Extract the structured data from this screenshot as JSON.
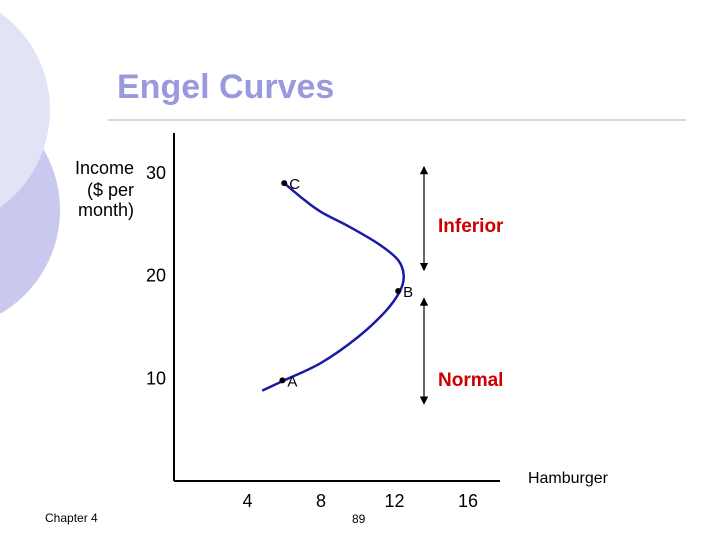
{
  "slide": {
    "title": "Engel Curves",
    "footer_left": "Chapter 4",
    "page_number": "89",
    "title_color": "#9999dd",
    "curve_color": "#1a1aa8"
  },
  "chart_data": {
    "type": "line",
    "title": "",
    "ylabel_lines": [
      "Income",
      "($ per",
      "month)"
    ],
    "xlabel": "Hamburger",
    "x_ticks": [
      4,
      8,
      12,
      16
    ],
    "y_ticks": [
      10,
      20,
      30
    ],
    "xlim": [
      0,
      16
    ],
    "ylim": [
      0,
      30
    ],
    "series": [
      {
        "x": [
          4.8,
          6.0,
          8.0,
          10.0,
          11.5,
          12.3,
          12.5,
          12.2,
          11.2,
          9.6,
          8.0,
          7.0,
          6.0
        ],
        "y": [
          8.8,
          9.8,
          11.5,
          14.0,
          16.5,
          18.5,
          20.0,
          21.5,
          23.0,
          24.7,
          26.2,
          27.5,
          29.0
        ]
      }
    ],
    "points": [
      {
        "label": "A",
        "x": 5.9,
        "y": 9.8
      },
      {
        "label": "B",
        "x": 12.2,
        "y": 18.5
      },
      {
        "label": "C",
        "x": 6.0,
        "y": 29.0
      }
    ],
    "annotations": [
      {
        "text": "Inferior",
        "arrow_y": [
          20.5,
          30.6
        ]
      },
      {
        "text": "Normal",
        "arrow_y": [
          7.5,
          17.8
        ]
      }
    ]
  }
}
